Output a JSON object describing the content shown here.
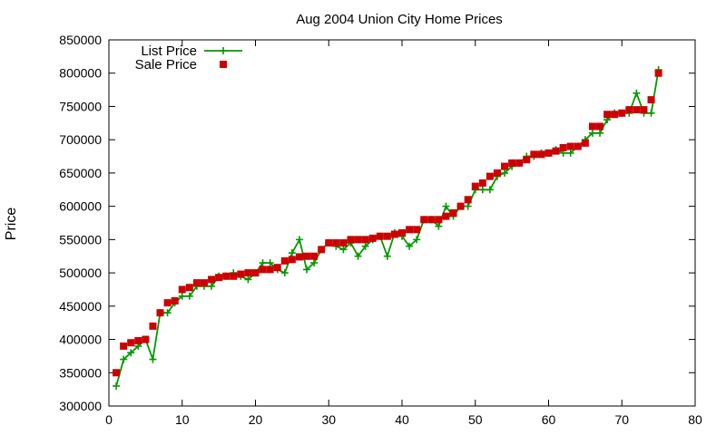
{
  "chart_data": {
    "type": "line",
    "title": "Aug 2004 Union City Home Prices",
    "xlabel": "",
    "ylabel": "Price",
    "xlim": [
      0,
      80
    ],
    "ylim": [
      300000,
      850000
    ],
    "x_ticks": [
      0,
      10,
      20,
      30,
      40,
      50,
      60,
      70,
      80
    ],
    "y_ticks": [
      300000,
      350000,
      400000,
      450000,
      500000,
      550000,
      600000,
      650000,
      700000,
      750000,
      800000,
      850000
    ],
    "grid": false,
    "legend_position": "top-left",
    "x": [
      1,
      2,
      3,
      4,
      5,
      6,
      7,
      8,
      9,
      10,
      11,
      12,
      13,
      14,
      15,
      16,
      17,
      18,
      19,
      20,
      21,
      22,
      23,
      24,
      25,
      26,
      27,
      28,
      29,
      30,
      31,
      32,
      33,
      34,
      35,
      36,
      37,
      38,
      39,
      40,
      41,
      42,
      43,
      44,
      45,
      46,
      47,
      48,
      49,
      50,
      51,
      52,
      53,
      54,
      55,
      56,
      57,
      58,
      59,
      60,
      61,
      62,
      63,
      64,
      65,
      66,
      67,
      68,
      69,
      70,
      71,
      72,
      73,
      74,
      75
    ],
    "series": [
      {
        "name": "List Price",
        "style": "line-plus",
        "color": "#009900",
        "values": [
          330000,
          370000,
          380000,
          390000,
          400000,
          370000,
          440000,
          440000,
          455000,
          465000,
          465000,
          480000,
          480000,
          480000,
          495000,
          495000,
          500000,
          495000,
          490000,
          500000,
          515000,
          515000,
          505000,
          500000,
          530000,
          550000,
          505000,
          515000,
          535000,
          545000,
          540000,
          535000,
          545000,
          525000,
          540000,
          550000,
          555000,
          525000,
          560000,
          555000,
          540000,
          550000,
          580000,
          580000,
          570000,
          600000,
          585000,
          600000,
          600000,
          625000,
          625000,
          625000,
          645000,
          650000,
          660000,
          665000,
          675000,
          675000,
          680000,
          680000,
          685000,
          680000,
          680000,
          690000,
          700000,
          710000,
          710000,
          730000,
          740000,
          740000,
          740000,
          770000,
          740000,
          740000,
          805000
        ]
      },
      {
        "name": "Sale Price",
        "style": "square",
        "color": "#cc0000",
        "values": [
          350000,
          390000,
          395000,
          398000,
          400000,
          420000,
          440000,
          455000,
          458000,
          475000,
          478000,
          485000,
          485000,
          490000,
          493000,
          495000,
          495000,
          498000,
          500000,
          500000,
          505000,
          505000,
          508000,
          518000,
          520000,
          524000,
          525000,
          525000,
          535000,
          545000,
          545000,
          545000,
          550000,
          550000,
          550000,
          552000,
          555000,
          555000,
          558000,
          560000,
          565000,
          565000,
          580000,
          580000,
          580000,
          585000,
          590000,
          600000,
          610000,
          630000,
          635000,
          645000,
          650000,
          660000,
          665000,
          665000,
          670000,
          678000,
          678000,
          680000,
          683000,
          688000,
          690000,
          690000,
          695000,
          720000,
          720000,
          738000,
          738000,
          740000,
          745000,
          745000,
          745000,
          760000,
          800000
        ]
      }
    ]
  }
}
